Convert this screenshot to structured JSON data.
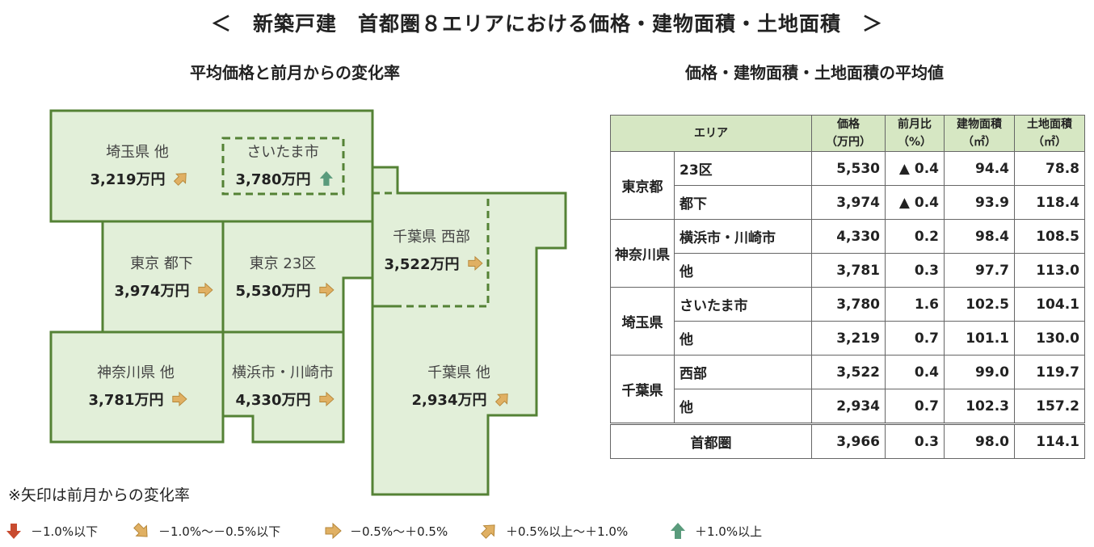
{
  "page": {
    "title": "＜　新築戸建　首都圏８エリアにおける価格・建物面積・土地面積　＞",
    "left_subtitle": "平均価格と前月からの変化率",
    "right_subtitle": "価格・建物面積・土地面積の平均値",
    "note": "※矢印は前月からの変化率"
  },
  "colors": {
    "map_fill": "#e2efd9",
    "map_border": "#548235",
    "header_fill": "#d6e7c3",
    "arrow_orange": "#e0b063",
    "arrow_green": "#5a9b7c",
    "arrow_red": "#c84b2f"
  },
  "legend": [
    {
      "icon": "arrow-down-red",
      "label": "－1.0%以下"
    },
    {
      "icon": "arrow-down-right-orange",
      "label": "－1.0%～－0.5%以下"
    },
    {
      "icon": "arrow-right-orange",
      "label": "－0.5%～＋0.5%"
    },
    {
      "icon": "arrow-up-right-orange",
      "label": "＋0.5%以上～＋1.0%"
    },
    {
      "icon": "arrow-up-green",
      "label": "＋1.0%以上"
    }
  ],
  "map_regions": [
    {
      "id": "saitama-other",
      "name": "埼玉県 他",
      "price": "3,219万円",
      "arrow": "arrow-up-right-orange"
    },
    {
      "id": "saitama-city",
      "name": "さいたま市",
      "price": "3,780万円",
      "arrow": "arrow-up-green"
    },
    {
      "id": "tokyo-toka",
      "name": "東京 都下",
      "price": "3,974万円",
      "arrow": "arrow-right-orange"
    },
    {
      "id": "tokyo-23",
      "name": "東京 23区",
      "price": "5,530万円",
      "arrow": "arrow-right-orange"
    },
    {
      "id": "chiba-west",
      "name": "千葉県 西部",
      "price": "3,522万円",
      "arrow": "arrow-right-orange"
    },
    {
      "id": "kanagawa-other",
      "name": "神奈川県 他",
      "price": "3,781万円",
      "arrow": "arrow-right-orange"
    },
    {
      "id": "yokohama",
      "name": "横浜市・川崎市",
      "price": "4,330万円",
      "arrow": "arrow-right-orange"
    },
    {
      "id": "chiba-other",
      "name": "千葉県 他",
      "price": "2,934万円",
      "arrow": "arrow-up-right-orange"
    }
  ],
  "chart_data": {
    "type": "table",
    "title": "価格・建物面積・土地面積の平均値",
    "columns": [
      "エリア",
      "価格（万円）",
      "前月比（%）",
      "建物面積（㎡）",
      "土地面積（㎡）"
    ],
    "headers": {
      "area": "エリア",
      "price": "価格",
      "price_unit": "（万円）",
      "change": "前月比",
      "change_unit": "（%）",
      "building": "建物面積",
      "building_unit": "（㎡）",
      "land": "土地面積",
      "land_unit": "（㎡）"
    },
    "groups": [
      {
        "prefecture": "東京都",
        "rows": [
          {
            "area": "23区",
            "price": "5,530",
            "change": "▲ 0.4",
            "building": "94.4",
            "land": "78.8"
          },
          {
            "area": "都下",
            "price": "3,974",
            "change": "▲ 0.4",
            "building": "93.9",
            "land": "118.4"
          }
        ]
      },
      {
        "prefecture": "神奈川県",
        "rows": [
          {
            "area": "横浜市・川崎市",
            "price": "4,330",
            "change": "0.2",
            "building": "98.4",
            "land": "108.5"
          },
          {
            "area": "他",
            "price": "3,781",
            "change": "0.3",
            "building": "97.7",
            "land": "113.0"
          }
        ]
      },
      {
        "prefecture": "埼玉県",
        "rows": [
          {
            "area": "さいたま市",
            "price": "3,780",
            "change": "1.6",
            "building": "102.5",
            "land": "104.1"
          },
          {
            "area": "他",
            "price": "3,219",
            "change": "0.7",
            "building": "101.1",
            "land": "130.0"
          }
        ]
      },
      {
        "prefecture": "千葉県",
        "rows": [
          {
            "area": "西部",
            "price": "3,522",
            "change": "0.4",
            "building": "99.0",
            "land": "119.7"
          },
          {
            "area": "他",
            "price": "2,934",
            "change": "0.7",
            "building": "102.3",
            "land": "157.2"
          }
        ]
      }
    ],
    "total": {
      "area": "首都圏",
      "price": "3,966",
      "change": "0.3",
      "building": "98.0",
      "land": "114.1"
    }
  }
}
